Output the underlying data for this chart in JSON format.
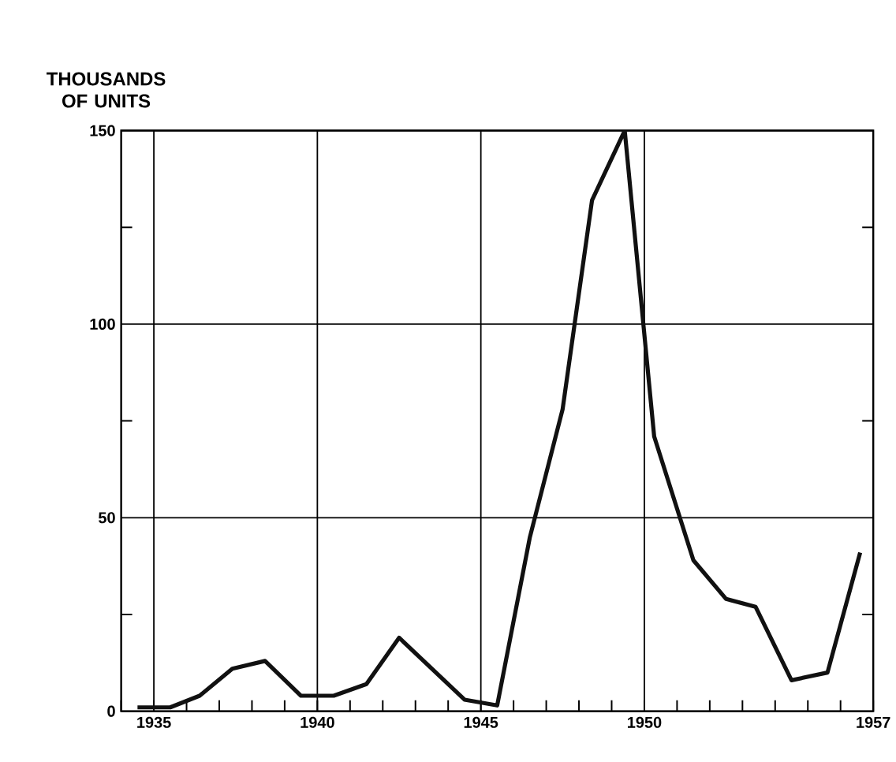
{
  "chart_data": {
    "type": "line",
    "ylabel": "THOUSANDS OF UNITS",
    "x": [
      1934.5,
      1935.5,
      1936.4,
      1937.4,
      1938.4,
      1939.5,
      1940.5,
      1941.5,
      1942.5,
      1944.5,
      1945.5,
      1946.5,
      1947.5,
      1948.4,
      1949.4,
      1950.3,
      1951.5,
      1952.5,
      1953.4,
      1954.5,
      1955.6,
      1956.6
    ],
    "series": [
      {
        "color": "#111111",
        "values": [
          1,
          1,
          4,
          11,
          13,
          4,
          4,
          7,
          19,
          3,
          1.5,
          45,
          78,
          132,
          150,
          71,
          39,
          29,
          27,
          8,
          10,
          41
        ]
      }
    ],
    "xlim": [
      1934,
      1957
    ],
    "ylim": [
      0,
      150
    ],
    "xticks": [
      1935,
      1940,
      1945,
      1950,
      1957
    ],
    "yticks": [
      0,
      50,
      100,
      150
    ],
    "grid": true,
    "marker": "none",
    "line_style": "solid"
  }
}
